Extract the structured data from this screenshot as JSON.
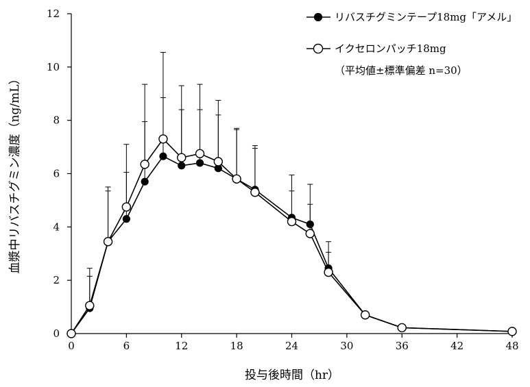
{
  "chart_data": {
    "type": "line",
    "xlabel": "投与後時間（hr）",
    "ylabel": "血漿中リバスチグミン濃度（ng/mL）",
    "xlim": [
      0,
      48
    ],
    "ylim": [
      0,
      12
    ],
    "xticks": [
      0,
      6,
      12,
      18,
      24,
      30,
      36,
      42,
      48
    ],
    "yticks": [
      0,
      2,
      4,
      6,
      8,
      10,
      12
    ],
    "legend_note": "（平均値±標準偏差 n=30）",
    "grid": false,
    "legend_position": "top-right",
    "series": [
      {
        "name": "リバスチグミンテープ18mg「アメル」",
        "marker": "filled-circle",
        "x": [
          0,
          2,
          4,
          6,
          8,
          10,
          12,
          14,
          16,
          18,
          20,
          24,
          26,
          28,
          32,
          36,
          48
        ],
        "y": [
          0,
          0.95,
          3.45,
          4.3,
          5.7,
          6.65,
          6.3,
          6.4,
          6.2,
          5.8,
          5.4,
          4.35,
          4.1,
          2.45,
          0.7,
          0.22,
          0.08
        ],
        "sd_upper": [
          null,
          2.15,
          5.35,
          6.05,
          7.95,
          8.85,
          8.4,
          8.4,
          8.2,
          7.7,
          7.05,
          5.35,
          4.85,
          3.05,
          null,
          null,
          null
        ]
      },
      {
        "name": "イクセロンパッチ18mg",
        "marker": "open-circle",
        "x": [
          0,
          2,
          4,
          6,
          8,
          10,
          12,
          14,
          16,
          18,
          20,
          24,
          26,
          28,
          32,
          36,
          48
        ],
        "y": [
          0,
          1.05,
          3.45,
          4.75,
          6.35,
          7.3,
          6.6,
          6.75,
          6.45,
          5.8,
          5.3,
          4.2,
          3.75,
          2.3,
          0.7,
          0.22,
          0.08
        ],
        "sd_upper": [
          null,
          2.45,
          5.5,
          7.1,
          9.35,
          10.55,
          9.3,
          9.35,
          8.75,
          7.65,
          6.95,
          5.95,
          5.6,
          3.45,
          null,
          null,
          null
        ]
      }
    ]
  }
}
